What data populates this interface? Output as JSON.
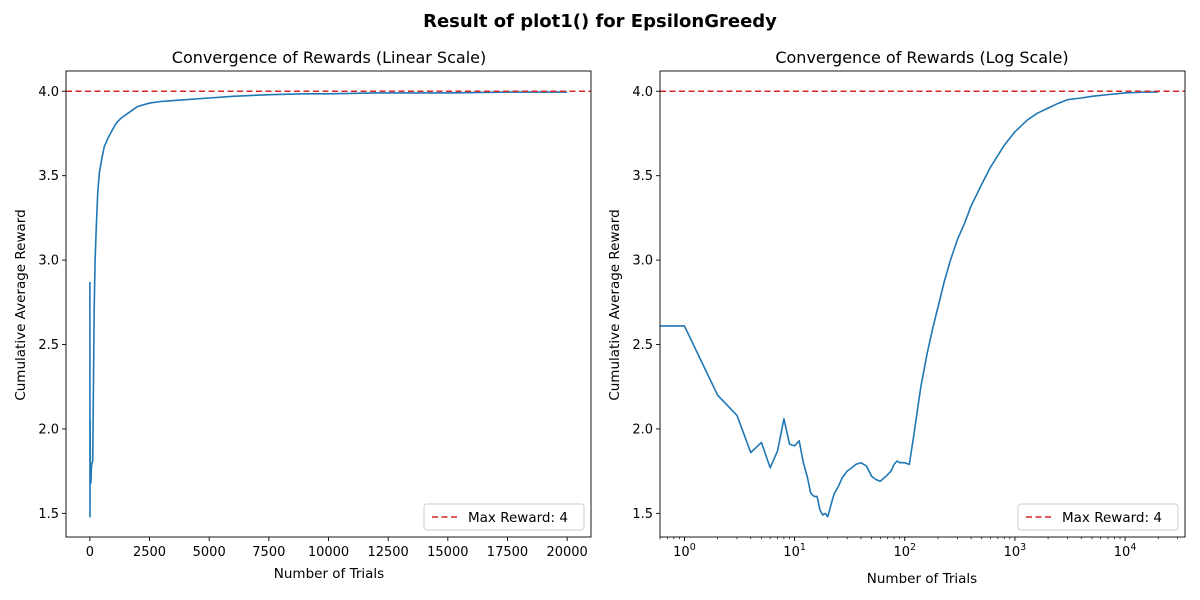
{
  "figure": {
    "suptitle": "Result of plot1() for EpsilonGreedy"
  },
  "chart_data": [
    {
      "type": "line",
      "title": "Convergence of Rewards (Linear Scale)",
      "xlabel": "Number of Trials",
      "ylabel": "Cumulative Average Reward",
      "xscale": "linear",
      "xlim": [
        -1000,
        21000
      ],
      "ylim": [
        1.36,
        4.12
      ],
      "xticks": [
        0,
        2500,
        5000,
        7500,
        10000,
        12500,
        15000,
        17500,
        20000
      ],
      "xtick_labels": [
        "0",
        "2500",
        "5000",
        "7500",
        "10000",
        "12500",
        "15000",
        "17500",
        "20000"
      ],
      "yticks": [
        1.5,
        2.0,
        2.5,
        3.0,
        3.5,
        4.0
      ],
      "ytick_labels": [
        "1.5",
        "2.0",
        "2.5",
        "3.0",
        "3.5",
        "4.0"
      ],
      "grid": false,
      "legend": {
        "position": "lower-right",
        "entries": [
          "Max Reward: 4"
        ]
      },
      "hline": {
        "y": 4.0,
        "color": "#d62728",
        "style": "dashed",
        "label": "Max Reward: 4"
      },
      "series": [
        {
          "color": "#1f77b4",
          "x": [
            1,
            5,
            10,
            20,
            30,
            45,
            60,
            80,
            100,
            120,
            150,
            180,
            220,
            270,
            330,
            400,
            500,
            600,
            750,
            900,
            1100,
            1300,
            1600,
            2000,
            2500,
            3000,
            4000,
            5000,
            6000,
            7500,
            9000,
            10000,
            12000,
            15000,
            17500,
            20000
          ],
          "y": [
            2.87,
            1.48,
            2.06,
            1.78,
            1.78,
            1.68,
            1.76,
            1.79,
            1.8,
            1.81,
            2.25,
            2.7,
            3.0,
            3.2,
            3.4,
            3.52,
            3.6,
            3.67,
            3.72,
            3.76,
            3.81,
            3.84,
            3.87,
            3.91,
            3.93,
            3.94,
            3.95,
            3.96,
            3.97,
            3.98,
            3.985,
            3.985,
            3.99,
            3.99,
            3.995,
            3.995
          ]
        }
      ]
    },
    {
      "type": "line",
      "title": "Convergence of Rewards (Log Scale)",
      "xlabel": "Number of Trials",
      "ylabel": "Cumulative Average Reward",
      "xscale": "log",
      "xlim": [
        0.6,
        35000
      ],
      "ylim": [
        1.36,
        4.12
      ],
      "xticks": [
        1,
        10,
        100,
        1000,
        10000
      ],
      "xtick_labels": [
        "0",
        "1",
        "2",
        "3",
        "4"
      ],
      "yticks": [
        1.5,
        2.0,
        2.5,
        3.0,
        3.5,
        4.0
      ],
      "ytick_labels": [
        "1.5",
        "2.0",
        "2.5",
        "3.0",
        "3.5",
        "4.0"
      ],
      "grid": false,
      "legend": {
        "position": "lower-right",
        "entries": [
          "Max Reward: 4"
        ]
      },
      "hline": {
        "y": 4.0,
        "color": "#d62728",
        "style": "dashed",
        "label": "Max Reward: 4"
      },
      "series": [
        {
          "color": "#1f77b4",
          "x": [
            0.6,
            1,
            2,
            3,
            4,
            5,
            6,
            7,
            8,
            9,
            10,
            11,
            12,
            13,
            14,
            15,
            16,
            17,
            18,
            19,
            20,
            21,
            22,
            23,
            25,
            27,
            30,
            33,
            36,
            40,
            45,
            50,
            55,
            60,
            65,
            70,
            75,
            80,
            85,
            90,
            100,
            110,
            120,
            140,
            160,
            180,
            200,
            230,
            260,
            300,
            350,
            400,
            500,
            600,
            700,
            800,
            1000,
            1300,
            1600,
            2000,
            2500,
            3000,
            4000,
            5000,
            7000,
            10000,
            15000,
            20000
          ],
          "y": [
            2.61,
            2.61,
            2.2,
            2.08,
            1.86,
            1.92,
            1.77,
            1.87,
            2.06,
            1.91,
            1.9,
            1.93,
            1.8,
            1.72,
            1.62,
            1.6,
            1.6,
            1.52,
            1.49,
            1.5,
            1.48,
            1.53,
            1.58,
            1.62,
            1.66,
            1.71,
            1.75,
            1.77,
            1.79,
            1.8,
            1.78,
            1.72,
            1.7,
            1.69,
            1.71,
            1.73,
            1.75,
            1.79,
            1.81,
            1.8,
            1.8,
            1.79,
            1.95,
            2.25,
            2.45,
            2.6,
            2.72,
            2.88,
            3.0,
            3.12,
            3.22,
            3.32,
            3.45,
            3.55,
            3.62,
            3.68,
            3.76,
            3.83,
            3.87,
            3.9,
            3.93,
            3.95,
            3.96,
            3.97,
            3.98,
            3.99,
            3.995,
            3.995
          ]
        }
      ]
    }
  ]
}
